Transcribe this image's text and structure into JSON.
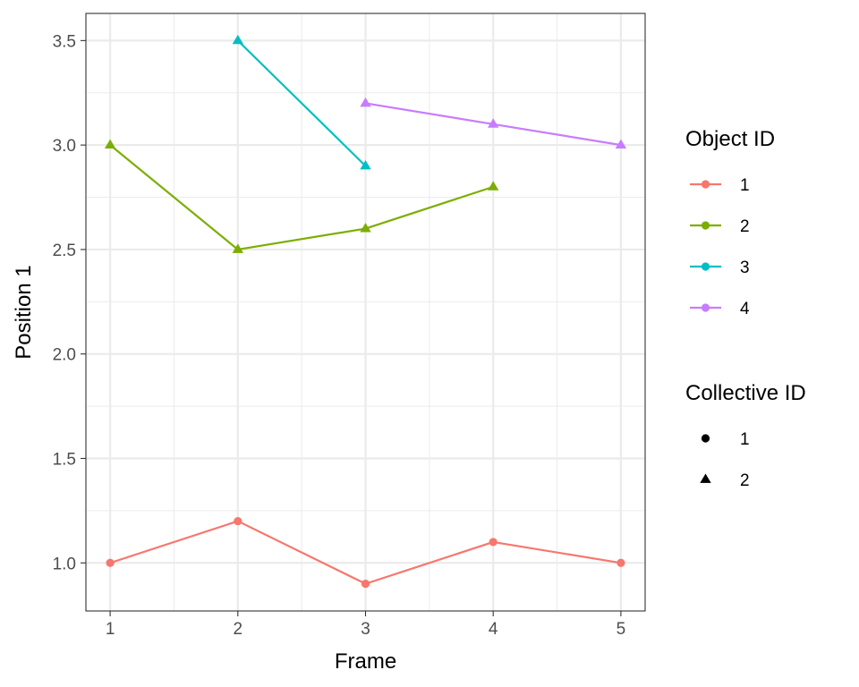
{
  "chart_data": {
    "type": "line",
    "xlabel": "Frame",
    "ylabel": "Position 1",
    "xlim": [
      0.81,
      5.19
    ],
    "ylim": [
      0.77,
      3.63
    ],
    "x_ticks": [
      1,
      2,
      3,
      4,
      5
    ],
    "x_tick_labels": [
      "1",
      "2",
      "3",
      "4",
      "5"
    ],
    "y_ticks": [
      1.0,
      1.5,
      2.0,
      2.5,
      3.0,
      3.5
    ],
    "y_tick_labels": [
      "1.0",
      "1.5",
      "2.0",
      "2.5",
      "3.0",
      "3.5"
    ],
    "grid": true,
    "legend_placement": "right",
    "color_legend": {
      "title": "Object ID",
      "entries": [
        {
          "label": "1",
          "color": "#F8766D"
        },
        {
          "label": "2",
          "color": "#7CAE00"
        },
        {
          "label": "3",
          "color": "#00BFC4"
        },
        {
          "label": "4",
          "color": "#C77CFF"
        }
      ]
    },
    "shape_legend": {
      "title": "Collective ID",
      "entries": [
        {
          "label": "1",
          "shape": "circle"
        },
        {
          "label": "2",
          "shape": "triangle"
        }
      ]
    },
    "series": [
      {
        "object_id": "1",
        "collective_id": "1",
        "color": "#F8766D",
        "shape": "circle",
        "x": [
          1,
          2,
          3,
          4,
          5
        ],
        "y": [
          1.0,
          1.2,
          0.9,
          1.1,
          1.0
        ]
      },
      {
        "object_id": "2",
        "collective_id": "2",
        "color": "#7CAE00",
        "shape": "triangle",
        "x": [
          1,
          2,
          3,
          4
        ],
        "y": [
          3.0,
          2.5,
          2.6,
          2.8
        ]
      },
      {
        "object_id": "3",
        "collective_id": "2",
        "color": "#00BFC4",
        "shape": "triangle",
        "x": [
          2,
          3
        ],
        "y": [
          3.5,
          2.9
        ]
      },
      {
        "object_id": "4",
        "collective_id": "2",
        "color": "#C77CFF",
        "shape": "triangle",
        "x": [
          3,
          4,
          5
        ],
        "y": [
          3.2,
          3.1,
          3.0
        ]
      }
    ]
  }
}
